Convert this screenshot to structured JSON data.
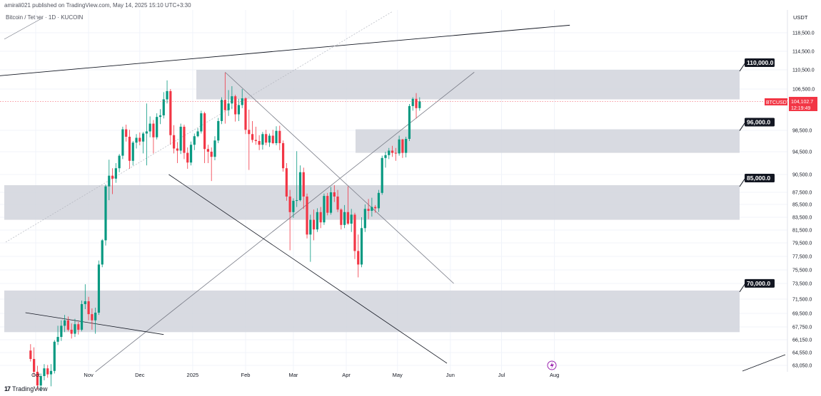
{
  "header": {
    "attribution": "amirali021 published on TradingView.com, May 14, 2025 15:10 UTC+3:30",
    "symbol_title": "Bitcoin / Tether · 1D · KUCOIN"
  },
  "footer": {
    "brand": "TradingView"
  },
  "price_axis": {
    "unit": "USDT",
    "ticks": [
      "118,500.0",
      "114,500.0",
      "110,500.0",
      "106,500.0",
      "98,500.0",
      "94,500.0",
      "90,500.0",
      "87,500.0",
      "85,500.0",
      "83,500.0",
      "81,500.0",
      "79,500.0",
      "77,500.0",
      "75,500.0",
      "73,500.0",
      "71,500.0",
      "69,500.0",
      "67,750.0",
      "66,150.0",
      "64,550.0",
      "63,050.0"
    ]
  },
  "current_price": {
    "symbol": "BTCUSDT",
    "price": "104,102.7",
    "countdown": "12:19:49",
    "color": "#f23645"
  },
  "colors": {
    "up": "#089981",
    "down": "#f23645",
    "zone": "#d1d4dc",
    "line": "#131722"
  },
  "chart_data": {
    "type": "candlestick",
    "title": "Bitcoin / Tether · 1D · KUCOIN",
    "x_axis_labels": [
      "Oct",
      "Nov",
      "Dec",
      "2025",
      "Feb",
      "Mar",
      "Apr",
      "May",
      "Jun",
      "Jul",
      "Aug"
    ],
    "zones": [
      {
        "label": "110,000.0",
        "range": [
          104500,
          110500
        ]
      },
      {
        "label": "96,000.0",
        "range": [
          94300,
          98700
        ]
      },
      {
        "label": "85,000.0",
        "range": [
          83100,
          88700
        ]
      },
      {
        "label": "70,000.0",
        "range": [
          67100,
          72600
        ]
      }
    ],
    "trendlines": [
      {
        "name": "upper-channel",
        "from": [
          "2024-08-01",
          108000
        ],
        "to": [
          "2025-08-10",
          120200
        ]
      },
      {
        "name": "rising-support",
        "from": [
          "2024-11-05",
          62300
        ],
        "to": [
          "2025-06-15",
          110000
        ]
      },
      {
        "name": "falling-resistance",
        "from": [
          "2025-01-20",
          110000
        ],
        "to": [
          "2025-06-03",
          73500
        ]
      },
      {
        "name": "falling-support",
        "from": [
          "2024-12-18",
          90500
        ],
        "to": [
          "2025-05-30",
          63300
        ]
      },
      {
        "name": "old-downtrend",
        "from": [
          "2024-09-25",
          69600
        ],
        "to": [
          "2024-12-15",
          66800
        ]
      }
    ],
    "daily_ohlc": [
      [
        "2024-09-28",
        64800,
        65600,
        63500,
        63800
      ],
      [
        "2024-09-30",
        63800,
        65200,
        61800,
        62300
      ],
      [
        "2024-10-02",
        62300,
        63000,
        60200,
        60700
      ],
      [
        "2024-10-04",
        60700,
        62100,
        60100,
        61800
      ],
      [
        "2024-10-06",
        61800,
        63200,
        61300,
        62700
      ],
      [
        "2024-10-08",
        62700,
        63100,
        61600,
        62000
      ],
      [
        "2024-10-10",
        62000,
        63200,
        60600,
        62400
      ],
      [
        "2024-10-12",
        62400,
        66100,
        62100,
        65900
      ],
      [
        "2024-10-14",
        65900,
        67900,
        65500,
        66500
      ],
      [
        "2024-10-16",
        66500,
        68600,
        66000,
        67900
      ],
      [
        "2024-10-18",
        67900,
        69300,
        67100,
        68600
      ],
      [
        "2024-10-20",
        68600,
        69100,
        67200,
        67400
      ],
      [
        "2024-10-22",
        67400,
        68200,
        66300,
        66900
      ],
      [
        "2024-10-24",
        66900,
        68800,
        66500,
        68100
      ],
      [
        "2024-10-26",
        68100,
        68400,
        66800,
        67400
      ],
      [
        "2024-10-28",
        67400,
        71300,
        67200,
        70800
      ],
      [
        "2024-10-30",
        70800,
        73400,
        70100,
        71200
      ],
      [
        "2024-11-01",
        71200,
        71800,
        68600,
        69400
      ],
      [
        "2024-11-03",
        69400,
        70200,
        67400,
        68600
      ],
      [
        "2024-11-05",
        68600,
        70300,
        66900,
        69600
      ],
      [
        "2024-11-07",
        69600,
        76900,
        69300,
        76300
      ],
      [
        "2024-11-09",
        76300,
        80100,
        75900,
        79900
      ],
      [
        "2024-11-11",
        79900,
        88800,
        79100,
        88500
      ],
      [
        "2024-11-13",
        88500,
        93100,
        86200,
        90300
      ],
      [
        "2024-11-15",
        90300,
        91600,
        87200,
        89800
      ],
      [
        "2024-11-17",
        89800,
        92500,
        89100,
        91600
      ],
      [
        "2024-11-19",
        91600,
        94100,
        90900,
        93800
      ],
      [
        "2024-11-21",
        93800,
        99200,
        93200,
        98700
      ],
      [
        "2024-11-23",
        98700,
        99600,
        96400,
        97300
      ],
      [
        "2024-11-25",
        97300,
        98600,
        91500,
        92900
      ],
      [
        "2024-11-27",
        92900,
        96500,
        92100,
        96200
      ],
      [
        "2024-11-29",
        96200,
        97800,
        95100,
        97100
      ],
      [
        "2024-12-01",
        97100,
        98100,
        95700,
        96400
      ],
      [
        "2024-12-03",
        96400,
        98200,
        94200,
        97900
      ],
      [
        "2024-12-05",
        97900,
        103700,
        92100,
        98300
      ],
      [
        "2024-12-07",
        98300,
        101200,
        97200,
        99800
      ],
      [
        "2024-12-09",
        99800,
        100500,
        94200,
        97200
      ],
      [
        "2024-12-11",
        97200,
        101800,
        96800,
        101100
      ],
      [
        "2024-12-13",
        101100,
        102600,
        99700,
        101400
      ],
      [
        "2024-12-15",
        101400,
        105900,
        100800,
        104500
      ],
      [
        "2024-12-17",
        104500,
        108300,
        103700,
        106100
      ],
      [
        "2024-12-19",
        106100,
        106500,
        95800,
        97600
      ],
      [
        "2024-12-21",
        97600,
        99500,
        94200,
        95100
      ],
      [
        "2024-12-23",
        95100,
        96300,
        92500,
        94700
      ],
      [
        "2024-12-25",
        94700,
        99800,
        94100,
        99200
      ],
      [
        "2024-12-27",
        99200,
        99600,
        93200,
        94300
      ],
      [
        "2024-12-29",
        94300,
        95300,
        91500,
        92600
      ],
      [
        "2024-12-31",
        92600,
        96400,
        92100,
        95800
      ],
      [
        "2025-01-02",
        95800,
        97900,
        94800,
        97400
      ],
      [
        "2025-01-04",
        97400,
        98900,
        97200,
        98300
      ],
      [
        "2025-01-06",
        98300,
        102300,
        97900,
        101800
      ],
      [
        "2025-01-08",
        101800,
        102100,
        92500,
        95000
      ],
      [
        "2025-01-10",
        95000,
        95800,
        92500,
        94500
      ],
      [
        "2025-01-12",
        94500,
        95300,
        89400,
        93600
      ],
      [
        "2025-01-14",
        93600,
        97400,
        93000,
        96600
      ],
      [
        "2025-01-16",
        96600,
        100900,
        96100,
        100300
      ],
      [
        "2025-01-18",
        100300,
        104900,
        99700,
        104400
      ],
      [
        "2025-01-20",
        104400,
        109900,
        99800,
        102400
      ],
      [
        "2025-01-22",
        102400,
        106300,
        101300,
        103700
      ],
      [
        "2025-01-24",
        103700,
        107100,
        102600,
        105100
      ],
      [
        "2025-01-26",
        105100,
        105400,
        100200,
        101600
      ],
      [
        "2025-01-28",
        101600,
        104600,
        100300,
        103400
      ],
      [
        "2025-01-30",
        103400,
        106500,
        102800,
        104700
      ],
      [
        "2025-02-01",
        104700,
        104900,
        97800,
        98600
      ],
      [
        "2025-02-03",
        98600,
        102500,
        91300,
        97800
      ],
      [
        "2025-02-05",
        97800,
        100300,
        96200,
        96700
      ],
      [
        "2025-02-07",
        96700,
        99200,
        95800,
        96500
      ],
      [
        "2025-02-09",
        96500,
        97600,
        94800,
        95800
      ],
      [
        "2025-02-11",
        95800,
        98200,
        94900,
        97800
      ],
      [
        "2025-02-13",
        97800,
        98600,
        95700,
        96200
      ],
      [
        "2025-02-15",
        96200,
        97900,
        95400,
        97500
      ],
      [
        "2025-02-17",
        97500,
        98600,
        95900,
        96100
      ],
      [
        "2025-02-19",
        96100,
        99300,
        95700,
        98400
      ],
      [
        "2025-02-21",
        98400,
        99400,
        94800,
        96100
      ],
      [
        "2025-02-23",
        96100,
        96600,
        91000,
        91600
      ],
      [
        "2025-02-25",
        91600,
        92500,
        86100,
        86800
      ],
      [
        "2025-02-27",
        86800,
        87900,
        78400,
        84300
      ],
      [
        "2025-03-01",
        84300,
        86500,
        83400,
        86100
      ],
      [
        "2025-03-03",
        86100,
        94600,
        85100,
        86200
      ],
      [
        "2025-03-05",
        86200,
        92100,
        86000,
        90900
      ],
      [
        "2025-03-07",
        90900,
        91700,
        84800,
        86800
      ],
      [
        "2025-03-09",
        86800,
        87300,
        80200,
        80800
      ],
      [
        "2025-03-11",
        80800,
        83900,
        76700,
        83100
      ],
      [
        "2025-03-13",
        83100,
        84700,
        79900,
        81600
      ],
      [
        "2025-03-15",
        81600,
        84900,
        81200,
        84300
      ],
      [
        "2025-03-17",
        84300,
        85100,
        81800,
        82700
      ],
      [
        "2025-03-19",
        82700,
        87300,
        82300,
        86900
      ],
      [
        "2025-03-21",
        86900,
        87400,
        83800,
        84200
      ],
      [
        "2025-03-23",
        84200,
        88400,
        83900,
        87500
      ],
      [
        "2025-03-25",
        87500,
        88700,
        85900,
        86800
      ],
      [
        "2025-03-27",
        86800,
        87900,
        84300,
        84700
      ],
      [
        "2025-03-29",
        84700,
        84900,
        81600,
        82300
      ],
      [
        "2025-03-31",
        82300,
        85400,
        81800,
        84300
      ],
      [
        "2025-04-02",
        84300,
        88500,
        82300,
        82500
      ],
      [
        "2025-04-04",
        82500,
        84800,
        81200,
        83900
      ],
      [
        "2025-04-06",
        83900,
        84200,
        77100,
        78300
      ],
      [
        "2025-04-08",
        78300,
        80800,
        74400,
        76300
      ],
      [
        "2025-04-10",
        76300,
        83500,
        75900,
        81800
      ],
      [
        "2025-04-12",
        81800,
        85500,
        81200,
        84800
      ],
      [
        "2025-04-14",
        84800,
        86400,
        83200,
        84500
      ],
      [
        "2025-04-16",
        84500,
        86600,
        83600,
        85100
      ],
      [
        "2025-04-18",
        85100,
        85400,
        84200,
        84900
      ],
      [
        "2025-04-20",
        84900,
        87900,
        84300,
        87400
      ],
      [
        "2025-04-22",
        87400,
        93800,
        87100,
        93400
      ],
      [
        "2025-04-24",
        93400,
        94500,
        91700,
        93900
      ],
      [
        "2025-04-26",
        93900,
        95200,
        93200,
        94700
      ],
      [
        "2025-04-28",
        94700,
        95600,
        93600,
        94300
      ],
      [
        "2025-04-30",
        94300,
        95200,
        92900,
        94200
      ],
      [
        "2025-05-02",
        94200,
        97500,
        93800,
        96800
      ],
      [
        "2025-05-04",
        96800,
        96900,
        93400,
        94300
      ],
      [
        "2025-05-06",
        94300,
        97300,
        93500,
        96900
      ],
      [
        "2025-05-08",
        96900,
        103600,
        96500,
        103200
      ],
      [
        "2025-05-10",
        103200,
        104900,
        102300,
        104600
      ],
      [
        "2025-05-12",
        104600,
        105700,
        100800,
        102800
      ],
      [
        "2025-05-14",
        102800,
        104900,
        102300,
        104100
      ]
    ]
  }
}
